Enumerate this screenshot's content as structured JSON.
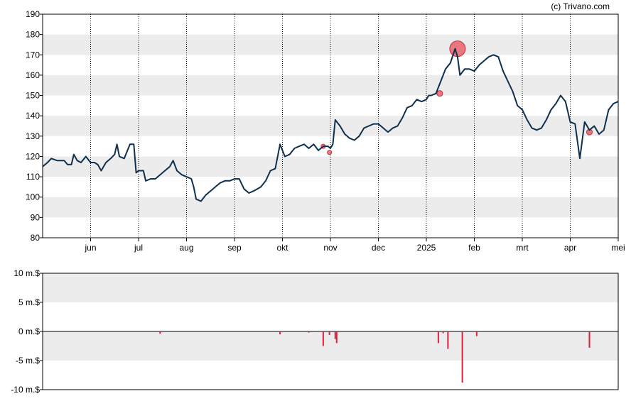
{
  "credit": "(c) Trivano.com",
  "colors": {
    "line": "#0f2f4f",
    "marker": "#e8505b",
    "bar": "#e0203a",
    "band": "#ececec",
    "axis": "#000000"
  },
  "chart_data": [
    {
      "type": "line",
      "ylim": [
        80,
        190
      ],
      "yticks": [
        "80",
        "90",
        "100",
        "110",
        "120",
        "130",
        "140",
        "150",
        "160",
        "170",
        "180",
        "190"
      ],
      "x_domain": [
        0,
        12
      ],
      "month_ticks": [
        {
          "label": "jun",
          "x": 1
        },
        {
          "label": "jul",
          "x": 2
        },
        {
          "label": "aug",
          "x": 3
        },
        {
          "label": "sep",
          "x": 4
        },
        {
          "label": "okt",
          "x": 5
        },
        {
          "label": "nov",
          "x": 6
        },
        {
          "label": "dec",
          "x": 7
        },
        {
          "label": "2025",
          "x": 8
        },
        {
          "label": "feb",
          "x": 9
        },
        {
          "label": "mrt",
          "x": 10
        },
        {
          "label": "apr",
          "x": 11
        },
        {
          "label": "mei",
          "x": 12
        }
      ],
      "series": [
        {
          "points": [
            [
              0.0,
              115
            ],
            [
              0.1,
              117
            ],
            [
              0.18,
              119
            ],
            [
              0.3,
              118
            ],
            [
              0.45,
              118
            ],
            [
              0.52,
              116
            ],
            [
              0.6,
              116
            ],
            [
              0.65,
              121
            ],
            [
              0.72,
              118
            ],
            [
              0.8,
              117
            ],
            [
              0.9,
              120
            ],
            [
              1.0,
              117
            ],
            [
              1.08,
              117
            ],
            [
              1.15,
              116
            ],
            [
              1.22,
              113
            ],
            [
              1.32,
              117
            ],
            [
              1.42,
              119
            ],
            [
              1.5,
              121
            ],
            [
              1.55,
              126
            ],
            [
              1.6,
              120
            ],
            [
              1.7,
              119
            ],
            [
              1.82,
              126
            ],
            [
              1.9,
              126
            ],
            [
              1.95,
              112
            ],
            [
              2.0,
              113
            ],
            [
              2.1,
              113
            ],
            [
              2.15,
              108
            ],
            [
              2.25,
              109
            ],
            [
              2.35,
              109
            ],
            [
              2.45,
              111
            ],
            [
              2.55,
              113
            ],
            [
              2.65,
              115
            ],
            [
              2.72,
              118
            ],
            [
              2.8,
              113
            ],
            [
              2.9,
              111
            ],
            [
              3.0,
              110
            ],
            [
              3.1,
              109
            ],
            [
              3.15,
              105
            ],
            [
              3.2,
              99
            ],
            [
              3.3,
              98
            ],
            [
              3.4,
              101
            ],
            [
              3.5,
              103
            ],
            [
              3.6,
              105
            ],
            [
              3.7,
              107
            ],
            [
              3.8,
              108
            ],
            [
              3.9,
              108
            ],
            [
              4.0,
              109
            ],
            [
              4.1,
              109
            ],
            [
              4.2,
              104
            ],
            [
              4.3,
              102
            ],
            [
              4.4,
              103
            ],
            [
              4.55,
              105
            ],
            [
              4.65,
              108
            ],
            [
              4.75,
              113
            ],
            [
              4.85,
              114
            ],
            [
              4.95,
              126
            ],
            [
              5.05,
              120
            ],
            [
              5.15,
              121
            ],
            [
              5.25,
              124
            ],
            [
              5.35,
              125
            ],
            [
              5.45,
              126
            ],
            [
              5.55,
              124
            ],
            [
              5.65,
              126
            ],
            [
              5.75,
              123
            ],
            [
              5.85,
              125
            ],
            [
              5.95,
              125
            ],
            [
              6.0,
              124
            ],
            [
              6.05,
              126
            ],
            [
              6.1,
              138
            ],
            [
              6.2,
              135
            ],
            [
              6.3,
              131
            ],
            [
              6.4,
              129
            ],
            [
              6.5,
              128
            ],
            [
              6.6,
              130
            ],
            [
              6.7,
              134
            ],
            [
              6.8,
              135
            ],
            [
              6.9,
              136
            ],
            [
              7.0,
              136
            ],
            [
              7.1,
              134
            ],
            [
              7.2,
              132
            ],
            [
              7.3,
              134
            ],
            [
              7.4,
              135
            ],
            [
              7.5,
              139
            ],
            [
              7.6,
              144
            ],
            [
              7.7,
              145
            ],
            [
              7.8,
              148
            ],
            [
              7.9,
              147
            ],
            [
              8.0,
              148
            ],
            [
              8.05,
              150
            ],
            [
              8.1,
              150
            ],
            [
              8.2,
              151
            ],
            [
              8.3,
              157
            ],
            [
              8.4,
              163
            ],
            [
              8.5,
              166
            ],
            [
              8.6,
              173
            ],
            [
              8.65,
              169
            ],
            [
              8.7,
              160
            ],
            [
              8.8,
              163
            ],
            [
              8.9,
              163
            ],
            [
              9.0,
              162
            ],
            [
              9.1,
              165
            ],
            [
              9.2,
              167
            ],
            [
              9.3,
              169
            ],
            [
              9.4,
              170
            ],
            [
              9.5,
              169
            ],
            [
              9.6,
              162
            ],
            [
              9.7,
              157
            ],
            [
              9.8,
              152
            ],
            [
              9.9,
              145
            ],
            [
              10.0,
              143
            ],
            [
              10.1,
              138
            ],
            [
              10.2,
              134
            ],
            [
              10.3,
              133
            ],
            [
              10.4,
              134
            ],
            [
              10.5,
              138
            ],
            [
              10.6,
              143
            ],
            [
              10.7,
              146
            ],
            [
              10.8,
              150
            ],
            [
              10.9,
              147
            ],
            [
              11.0,
              137
            ],
            [
              11.1,
              136
            ],
            [
              11.2,
              119
            ],
            [
              11.3,
              137
            ],
            [
              11.4,
              133
            ],
            [
              11.5,
              135
            ],
            [
              11.6,
              131
            ],
            [
              11.7,
              133
            ],
            [
              11.8,
              143
            ],
            [
              11.9,
              146
            ],
            [
              12.0,
              147
            ]
          ]
        }
      ],
      "markers": [
        {
          "x": 5.85,
          "y": 125,
          "r": 3
        },
        {
          "x": 5.98,
          "y": 122,
          "r": 3
        },
        {
          "x": 8.28,
          "y": 151,
          "r": 4
        },
        {
          "x": 8.65,
          "y": 173,
          "r": 11
        },
        {
          "x": 11.4,
          "y": 132,
          "r": 4
        }
      ],
      "grid": "alternating horizontal bands"
    },
    {
      "type": "bar",
      "ylim": [
        -10,
        10
      ],
      "yticks": [
        "-10 m.$",
        "-5 m.$",
        "0 m.$",
        "5 m.$",
        "10 m.$"
      ],
      "x_domain": [
        0,
        12
      ],
      "bars": [
        {
          "x": 2.45,
          "v": -0.4
        },
        {
          "x": 4.95,
          "v": -0.5
        },
        {
          "x": 5.55,
          "v": -0.2
        },
        {
          "x": 5.85,
          "v": -2.5
        },
        {
          "x": 5.98,
          "v": -0.6
        },
        {
          "x": 6.1,
          "v": -1.3
        },
        {
          "x": 6.13,
          "v": -2.0
        },
        {
          "x": 8.25,
          "v": -2.0
        },
        {
          "x": 8.35,
          "v": -0.3
        },
        {
          "x": 8.45,
          "v": -3.0
        },
        {
          "x": 8.75,
          "v": -8.8
        },
        {
          "x": 9.05,
          "v": -0.8
        },
        {
          "x": 11.4,
          "v": -2.8
        }
      ]
    }
  ]
}
